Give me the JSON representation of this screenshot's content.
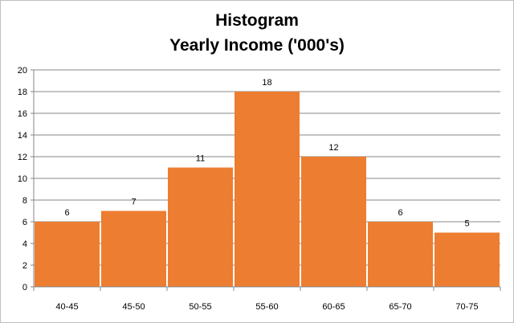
{
  "chart_data": {
    "type": "bar",
    "title": "Histogram",
    "subtitle": "Yearly Income ('000's)",
    "xlabel": "",
    "ylabel": "",
    "categories": [
      "40-45",
      "45-50",
      "50-55",
      "55-60",
      "60-65",
      "65-70",
      "70-75"
    ],
    "values": [
      6,
      7,
      11,
      18,
      12,
      6,
      5
    ],
    "ylim": [
      0,
      20
    ],
    "yticks": [
      0,
      2,
      4,
      6,
      8,
      10,
      12,
      14,
      16,
      18,
      20
    ],
    "grid": true,
    "legend": "none",
    "bar_color": "#ED7D31",
    "grid_color": "#878787"
  }
}
